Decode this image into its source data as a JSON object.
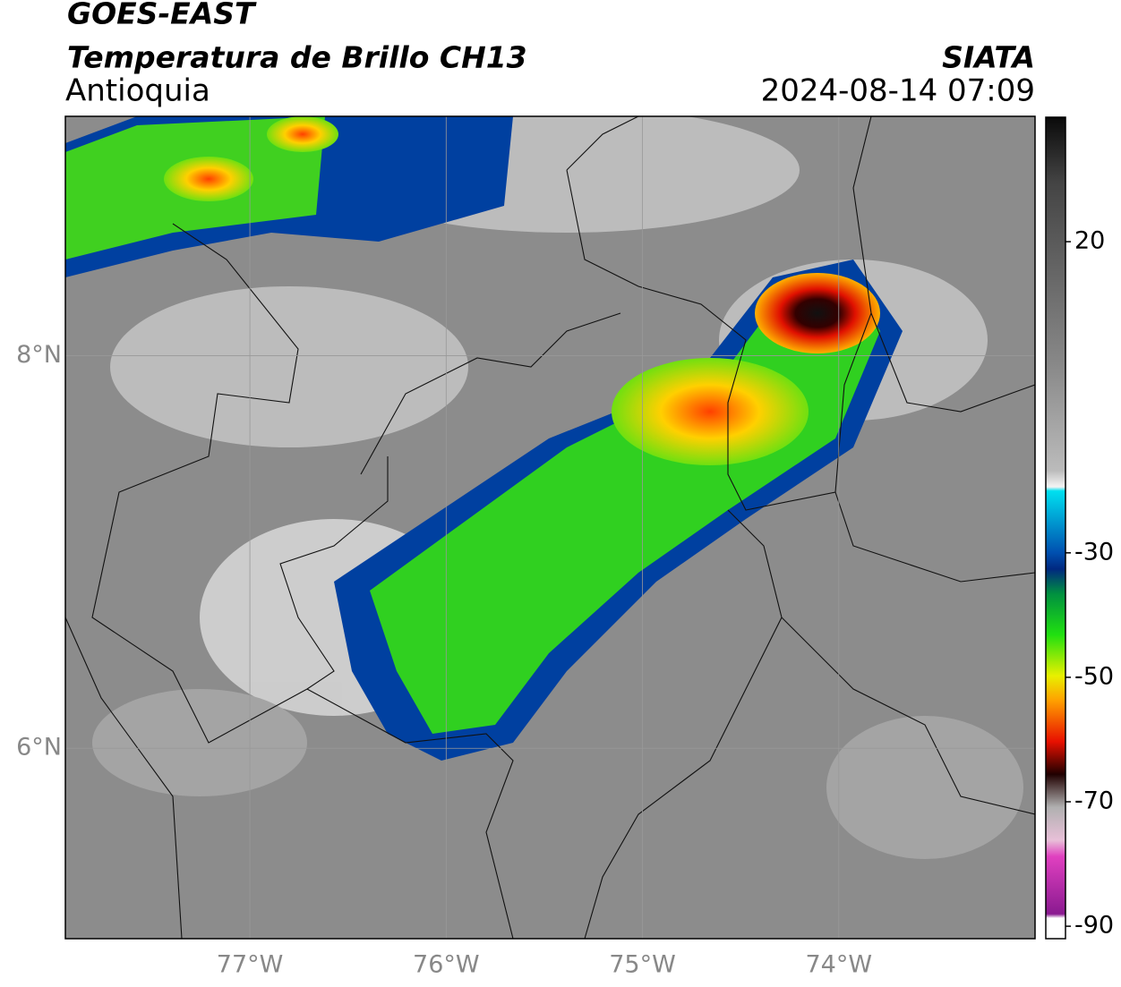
{
  "header": {
    "title": "GOES-EAST",
    "subtitle": "Temperatura de Brillo CH13",
    "region": "Antioquia",
    "source": "SIATA",
    "datetime": "2024-08-14 07:09"
  },
  "map": {
    "xlim": [
      -77.94,
      -73
    ],
    "ylim": [
      5.03,
      9.22
    ],
    "xticks": [
      {
        "value": -77,
        "label": "77°W"
      },
      {
        "value": -76,
        "label": "76°W"
      },
      {
        "value": -75,
        "label": "75°W"
      },
      {
        "value": -74,
        "label": "74°W"
      }
    ],
    "yticks": [
      {
        "value": 6,
        "label": "6°N"
      },
      {
        "value": 8,
        "label": "8°N"
      }
    ]
  },
  "colorbar": {
    "lim": [
      -92,
      40
    ],
    "ticks": [
      20,
      -30,
      -50,
      -70,
      -90
    ]
  }
}
